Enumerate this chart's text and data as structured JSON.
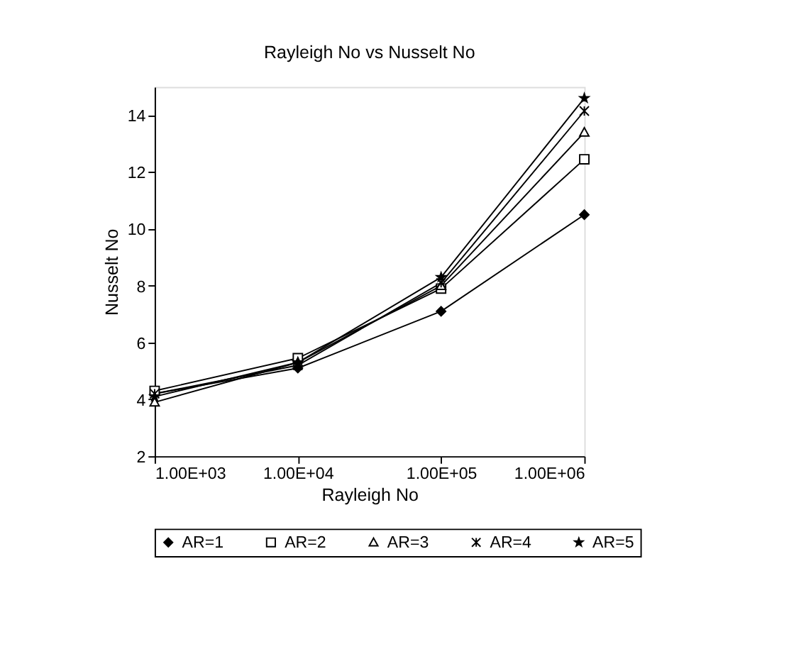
{
  "chart_data": {
    "type": "line",
    "title": "Rayleigh No vs Nusselt No",
    "xlabel": "Rayleigh No",
    "ylabel": "Nusselt No",
    "x": [
      1000,
      10000,
      100000,
      1000000
    ],
    "log": "x",
    "xlim": [
      1000,
      1000000
    ],
    "xticks": [
      {
        "value": 1000,
        "label": "1.00E+03"
      },
      {
        "value": 10000,
        "label": "1.00E+04"
      },
      {
        "value": 100000,
        "label": "1.00E+05"
      },
      {
        "value": 1000000,
        "label": "1.00E+06"
      }
    ],
    "ylim": [
      2,
      15
    ],
    "yticks": [
      2,
      4,
      6,
      8,
      10,
      12,
      14
    ],
    "grid": false,
    "legend": "bottom",
    "series": [
      {
        "name": "AR=1",
        "color": "#000000",
        "marker": "diamond",
        "values": [
          4.2,
          5.1,
          7.1,
          10.5
        ]
      },
      {
        "name": "AR=2",
        "color": "#000000",
        "marker": "square",
        "values": [
          4.3,
          5.45,
          7.9,
          12.45
        ]
      },
      {
        "name": "AR=3",
        "color": "#000000",
        "marker": "triangle",
        "values": [
          3.9,
          5.3,
          8.0,
          13.4
        ]
      },
      {
        "name": "AR=4",
        "color": "#000000",
        "marker": "cross",
        "values": [
          4.2,
          5.2,
          8.1,
          14.15
        ]
      },
      {
        "name": "AR=5",
        "color": "#000000",
        "marker": "star",
        "values": [
          4.1,
          5.3,
          8.3,
          14.6
        ]
      }
    ]
  }
}
